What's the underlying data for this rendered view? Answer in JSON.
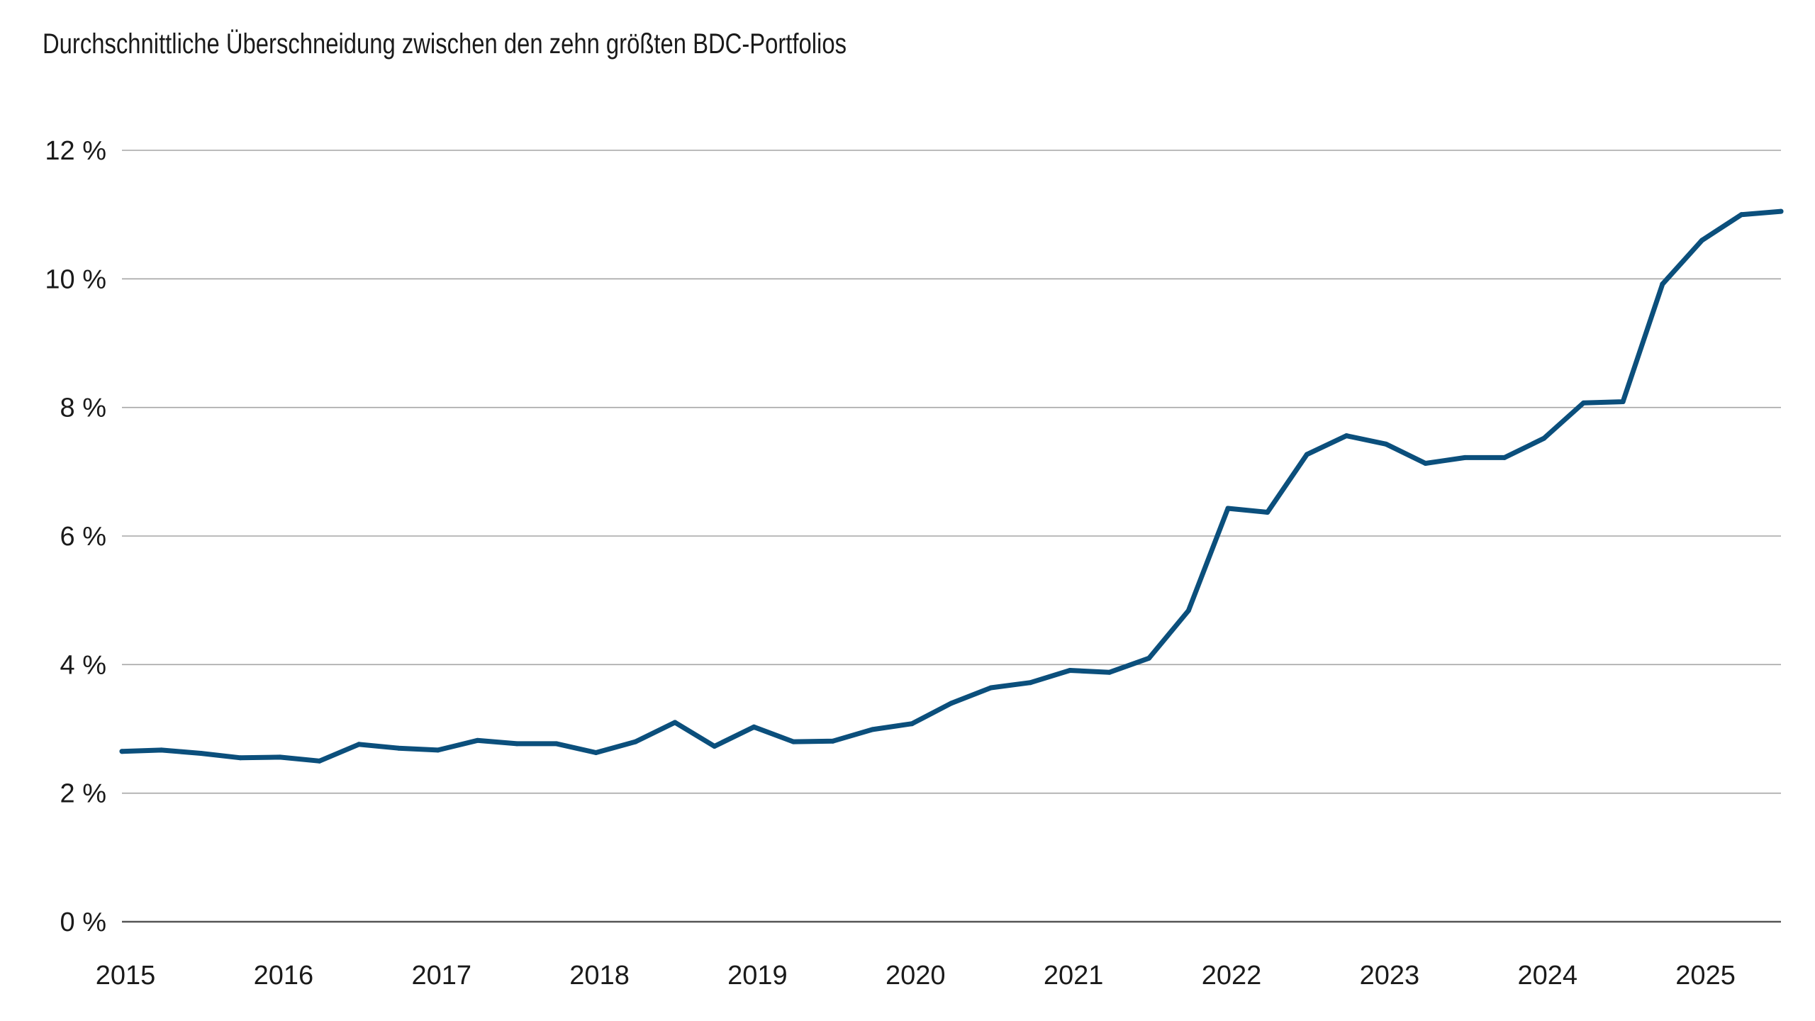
{
  "chart_data": {
    "type": "line",
    "title": "Durchschnittliche Überschneidung zwischen den zehn größten BDC-Portfolios",
    "xlabel": "",
    "ylabel": "",
    "y_unit": "%",
    "ylim": [
      0,
      12
    ],
    "y_ticks": [
      0,
      2,
      4,
      6,
      8,
      10,
      12
    ],
    "y_tick_labels": [
      "0 %",
      "2 %",
      "4 %",
      "6 %",
      "8 %",
      "10 %",
      "12 %"
    ],
    "xlim": [
      2015.0,
      2025.5
    ],
    "x_ticks": [
      2015,
      2016,
      2017,
      2018,
      2019,
      2020,
      2021,
      2022,
      2023,
      2024,
      2025
    ],
    "x_tick_labels": [
      "2015",
      "2016",
      "2017",
      "2018",
      "2019",
      "2020",
      "2021",
      "2022",
      "2023",
      "2024",
      "2025"
    ],
    "grid": "horizontal",
    "color": "#0b4f7c",
    "series": [
      {
        "x": [
          2015.0,
          2015.25,
          2015.5,
          2015.75,
          2016.0,
          2016.25,
          2016.5,
          2016.75,
          2017.0,
          2017.25,
          2017.5,
          2017.75,
          2018.0,
          2018.25,
          2018.5,
          2018.75,
          2019.0,
          2019.25,
          2019.5,
          2019.75,
          2020.0,
          2020.25,
          2020.5,
          2020.75,
          2021.0,
          2021.25,
          2021.5,
          2021.75,
          2022.0,
          2022.25,
          2022.5,
          2022.75,
          2023.0,
          2023.25,
          2023.5,
          2023.75,
          2024.0,
          2024.25,
          2024.5,
          2024.75,
          2025.0,
          2025.25,
          2025.5
        ],
        "values": [
          2.65,
          2.67,
          2.62,
          2.55,
          2.56,
          2.5,
          2.76,
          2.7,
          2.67,
          2.82,
          2.77,
          2.77,
          2.63,
          2.8,
          3.1,
          2.73,
          3.03,
          2.8,
          2.81,
          2.99,
          3.08,
          3.4,
          3.64,
          3.72,
          3.91,
          3.88,
          4.1,
          4.84,
          6.43,
          6.37,
          7.27,
          7.56,
          7.43,
          7.13,
          7.22,
          7.22,
          7.52,
          8.07,
          8.09,
          9.92,
          10.6,
          11.0,
          11.05
        ]
      }
    ]
  }
}
